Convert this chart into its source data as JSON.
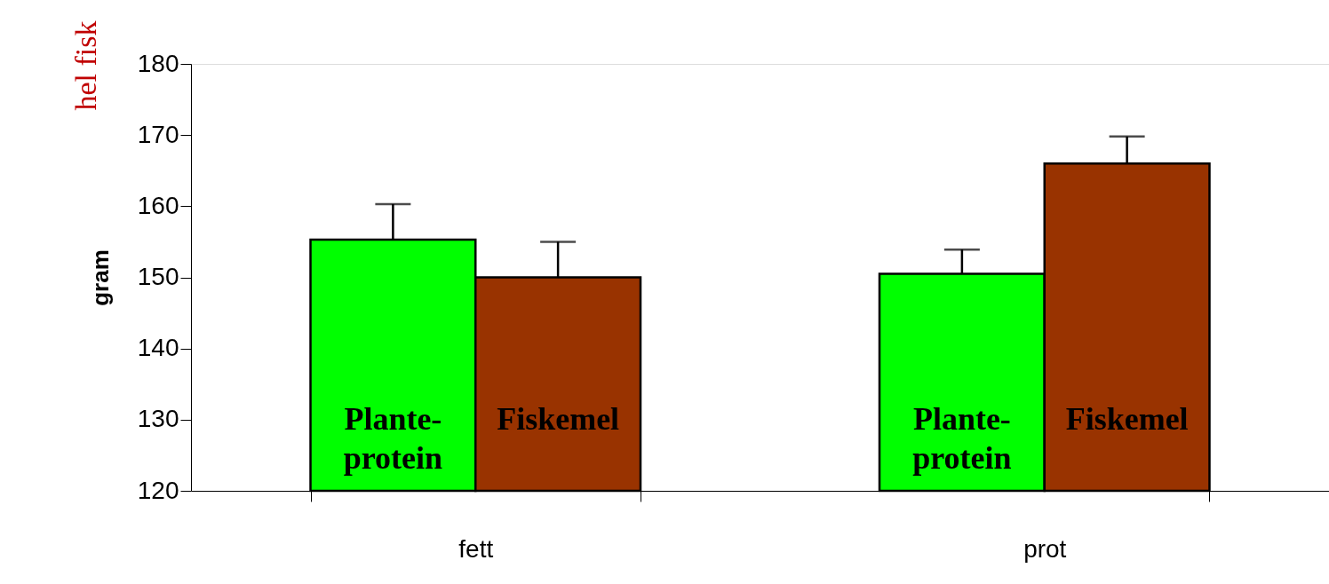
{
  "chart_data": {
    "type": "bar",
    "ylabel": "gram",
    "categories": [
      "fett",
      "prot"
    ],
    "series": [
      {
        "name": "Plante-\nprotein",
        "color": "#00ff00",
        "values": [
          155.3,
          150.5
        ],
        "errors": [
          [
            155.3,
            160.3
          ],
          [
            150.5,
            153.9
          ]
        ]
      },
      {
        "name": "Fiskemel",
        "color": "#993300",
        "values": [
          150,
          166
        ],
        "errors": [
          [
            150,
            155
          ],
          [
            166,
            169.8
          ]
        ]
      }
    ],
    "ylim": [
      120,
      180
    ],
    "yticks": [
      120,
      130,
      140,
      150,
      160,
      170,
      180
    ],
    "grid": false,
    "annotations": [
      "hel fisk"
    ]
  }
}
